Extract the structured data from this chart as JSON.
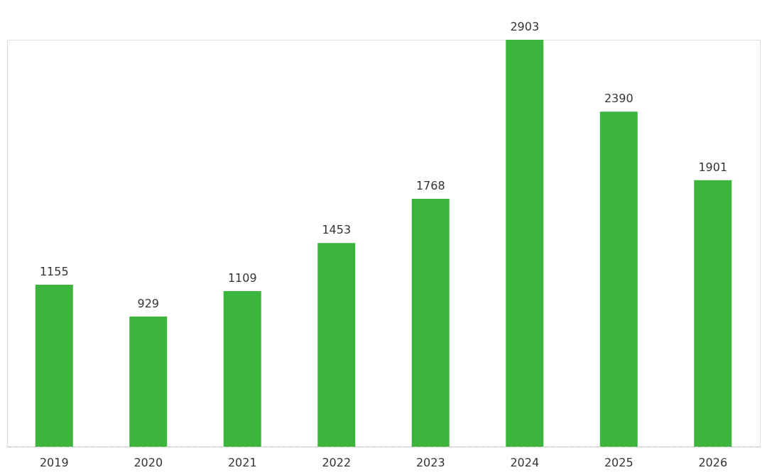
{
  "chart_data": {
    "type": "bar",
    "categories": [
      "2019",
      "2020",
      "2021",
      "2022",
      "2023",
      "2024",
      "2025",
      "2026"
    ],
    "values": [
      1155,
      929,
      1109,
      1453,
      1768,
      2903,
      2390,
      1901
    ],
    "color": "#3cb53c",
    "data_labels": true,
    "tick_labels": "x"
  }
}
